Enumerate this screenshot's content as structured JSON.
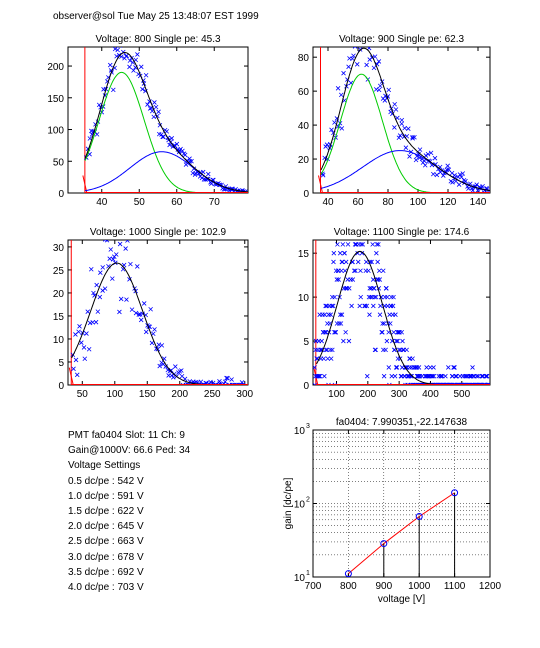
{
  "header": {
    "text": "observer@sol  Tue May 25 13:48:07 EST 1999"
  },
  "info": {
    "lines": [
      "PMT fa0404 Slot: 11 Ch: 9",
      "Gain@1000V: 66.6 Ped: 34",
      "Voltage Settings",
      "0.5 dc/pe : 542 V",
      "1.0 dc/pe : 591 V",
      "1.5 dc/pe : 622 V",
      "2.0 dc/pe : 645 V",
      "2.5 dc/pe : 663 V",
      "3.0 dc/pe : 678 V",
      "3.5 dc/pe : 692 V",
      "4.0 dc/pe : 703 V"
    ]
  },
  "colors": {
    "data": "#0000ff",
    "total_fit": "#000000",
    "gauss1": "#00cc00",
    "gauss2": "#0000ff",
    "pedestal": "#ff0000",
    "gain_line": "#ff0000"
  },
  "chart_data": [
    {
      "type": "scatter",
      "title": "Voltage: 800 Single pe: 45.3",
      "xlim": [
        31,
        79
      ],
      "ylim": [
        0,
        230
      ],
      "xticks": [
        "40",
        "50",
        "60",
        "70"
      ],
      "xtick_values": [
        40,
        50,
        60,
        70
      ],
      "yticks": [
        "0",
        "50",
        "100",
        "150",
        "200"
      ],
      "ytick_values": [
        0,
        50,
        100,
        150,
        200
      ],
      "pedestal_x": 35.5,
      "gauss1": {
        "mean": 45.3,
        "sigma": 6.0,
        "amp": 190
      },
      "gauss2": {
        "mean": 56,
        "sigma": 8.5,
        "amp": 65
      },
      "data_range": [
        36,
        79
      ]
    },
    {
      "type": "scatter",
      "title": "Voltage: 900 Single pe: 62.3",
      "xlim": [
        30,
        148
      ],
      "ylim": [
        0,
        86
      ],
      "xticks": [
        "40",
        "60",
        "80",
        "100",
        "120",
        "140"
      ],
      "xtick_values": [
        40,
        60,
        80,
        100,
        120,
        140
      ],
      "yticks": [
        "0",
        "20",
        "40",
        "60",
        "80"
      ],
      "ytick_values": [
        0,
        20,
        40,
        60,
        80
      ],
      "pedestal_x": 35,
      "gauss1": {
        "mean": 62.3,
        "sigma": 14,
        "amp": 70
      },
      "gauss2": {
        "mean": 88,
        "sigma": 25,
        "amp": 25
      },
      "data_range": [
        36,
        148
      ]
    },
    {
      "type": "scatter",
      "title": "Voltage: 1000 Single pe: 102.9",
      "xlim": [
        28,
        305
      ],
      "ylim": [
        0,
        31.5
      ],
      "xticks": [
        "50",
        "100",
        "150",
        "200",
        "250",
        "300"
      ],
      "xtick_values": [
        50,
        100,
        150,
        200,
        250,
        300
      ],
      "yticks": [
        "0",
        "5",
        "10",
        "15",
        "20",
        "25",
        "30"
      ],
      "ytick_values": [
        0,
        5,
        10,
        15,
        20,
        25,
        30
      ],
      "pedestal_x": 33,
      "gauss1": {
        "mean": 102.9,
        "sigma": 40,
        "amp": 26.5
      },
      "gauss2": {
        "mean": 140,
        "sigma": 60,
        "amp": 0
      },
      "data_range": [
        35,
        300
      ]
    },
    {
      "type": "scatter",
      "title": "Voltage: 1100 Single pe: 174.6",
      "xlim": [
        25,
        590
      ],
      "ylim": [
        0,
        16.5
      ],
      "xticks": [
        "100",
        "200",
        "300",
        "400",
        "500"
      ],
      "xtick_values": [
        100,
        200,
        300,
        400,
        500
      ],
      "yticks": [
        "0",
        "5",
        "10",
        "15"
      ],
      "ytick_values": [
        0,
        5,
        10,
        15
      ],
      "pedestal_x": 34,
      "gauss1": {
        "mean": 174.6,
        "sigma": 72,
        "amp": 15.2
      },
      "gauss2": {
        "mean": 250,
        "sigma": 100,
        "amp": 0
      },
      "data_range": [
        30,
        590
      ],
      "quantized": true
    },
    {
      "type": "line",
      "title": "fa0404: 7.990351,-22.147638",
      "xlabel": "voltage [V]",
      "ylabel": "gain [dc/pe]",
      "yscale": "log",
      "xlim": [
        700,
        1200
      ],
      "ylim": [
        10,
        1000
      ],
      "xticks": [
        "700",
        "800",
        "900",
        "1000",
        "1100",
        "1200"
      ],
      "xtick_values": [
        700,
        800,
        900,
        1000,
        1100,
        1200
      ],
      "yticks": [
        "10",
        "10",
        "10"
      ],
      "ytick_exponents": [
        "1",
        "2",
        "3"
      ],
      "ytick_values": [
        10,
        100,
        1000
      ],
      "grid": true,
      "x": [
        800,
        900,
        1000,
        1100
      ],
      "y": [
        11.1,
        28.5,
        66.6,
        140
      ]
    }
  ]
}
